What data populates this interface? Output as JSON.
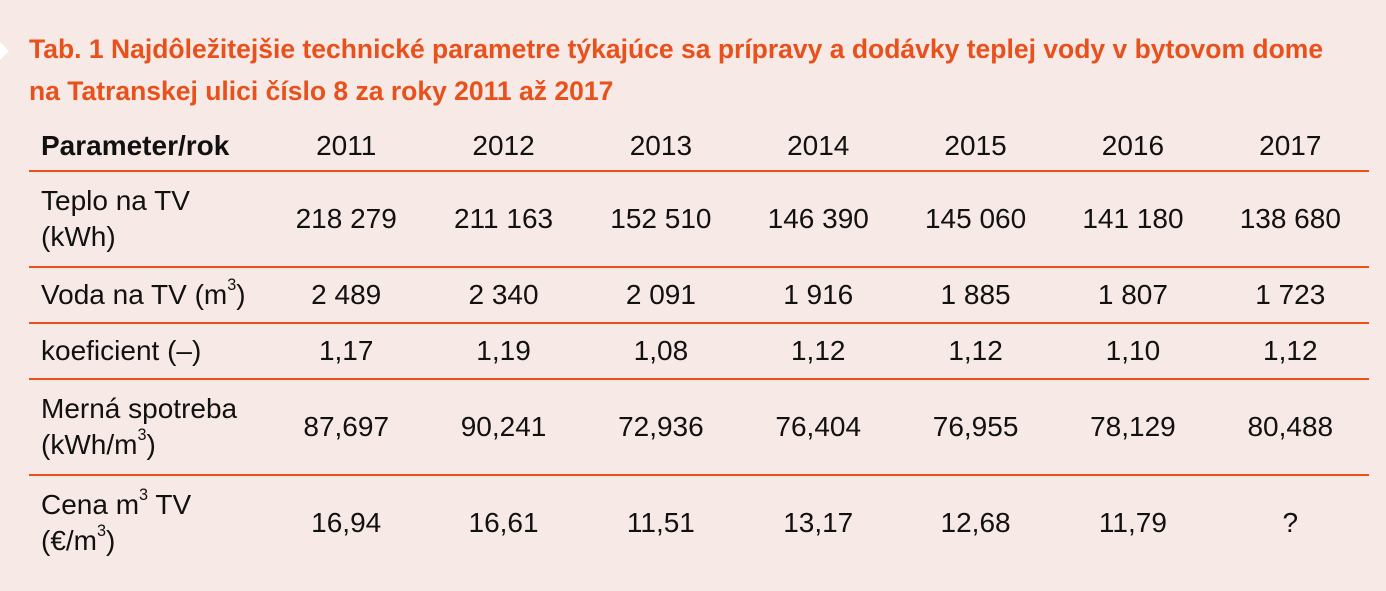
{
  "title": "Tab. 1 Najdôležitejšie technické parametre týkajúce sa prípravy a dodávky teplej vody v bytovom dome na Tatranskej ulici číslo 8 za roky 2011 až 2017",
  "header": {
    "label": "Parameter/rok",
    "years": [
      "2011",
      "2012",
      "2013",
      "2014",
      "2015",
      "2016",
      "2017"
    ]
  },
  "rows": [
    {
      "label_line1": "Teplo na TV",
      "label_line2": "(kWh)",
      "values": [
        "218 279",
        "211 163",
        "152 510",
        "146 390",
        "145 060",
        "141 180",
        "138 680"
      ]
    },
    {
      "label_pre": "Voda na TV (m",
      "label_sup": "3",
      "label_post": ")",
      "values": [
        "2 489",
        "2 340",
        "2 091",
        "1 916",
        "1 885",
        "1 807",
        "1 723"
      ]
    },
    {
      "label": "koeficient (–)",
      "values": [
        "1,17",
        "1,19",
        "1,08",
        "1,12",
        "1,12",
        "1,10",
        "1,12"
      ]
    },
    {
      "label_line1": "Merná spotreba",
      "label_line2_pre": "(kWh/m",
      "label_line2_sup": "3",
      "label_line2_post": ")",
      "values": [
        "87,697",
        "90,241",
        "72,936",
        "76,404",
        "76,955",
        "78,129",
        "80,488"
      ]
    },
    {
      "label_line1_pre": "Cena m",
      "label_line1_sup": "3",
      "label_line1_post": " TV",
      "label_line2_pre": "(€/m",
      "label_line2_sup": "3",
      "label_line2_post": ")",
      "values": [
        "16,94",
        "16,61",
        "11,51",
        "13,17",
        "12,68",
        "11,79",
        "?"
      ]
    }
  ],
  "colors": {
    "accent": "#e8501c",
    "background": "#f7e9e5",
    "text": "#111111"
  }
}
